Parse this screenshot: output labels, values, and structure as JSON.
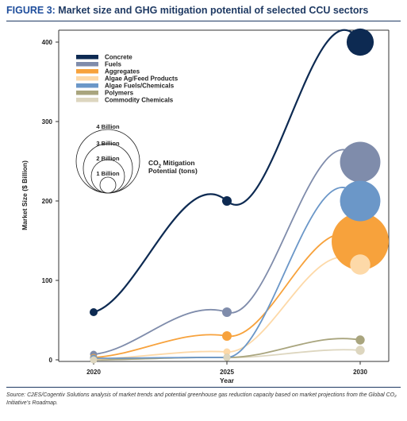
{
  "figure": {
    "label": "FIGURE 3:",
    "title": "Market size and GHG mitigation potential of selected CCU sectors",
    "source": "Source: C2ES/Cogentiv Solutions analysis of market trends and potential greenhouse gas reduction capacity based on market projections from the Global CO₂ Initiative’s Roadmap."
  },
  "chart_data": {
    "type": "scatter",
    "xlabel": "Year",
    "ylabel": "Market Size ($ Billion)",
    "x": [
      "2020",
      "2025",
      "2030"
    ],
    "ylim": [
      0,
      420
    ],
    "yticks": [
      "0",
      "100",
      "200",
      "300",
      "400"
    ],
    "grid": false,
    "legend_position": "top-left",
    "series": [
      {
        "name": "Concrete",
        "color": "#0d2a52",
        "values": [
          60,
          200,
          400
        ],
        "mitigation_billion_tons": [
          null,
          null,
          0.9
        ]
      },
      {
        "name": "Fuels",
        "color": "#7f8cab",
        "values": [
          7,
          60,
          249
        ],
        "mitigation_billion_tons": [
          null,
          null,
          2.0
        ]
      },
      {
        "name": "Aggregates",
        "color": "#f7a23c",
        "values": [
          3,
          30,
          149
        ],
        "mitigation_billion_tons": [
          null,
          null,
          4.0
        ]
      },
      {
        "name": "Algae Ag/Feed Products",
        "color": "#fdd9a8",
        "values": [
          1,
          10,
          120
        ],
        "mitigation_billion_tons": [
          null,
          null,
          0.5
        ]
      },
      {
        "name": "Algae Fuels/Chemicals",
        "color": "#6b97c8",
        "values": [
          2,
          3,
          200
        ],
        "mitigation_billion_tons": [
          null,
          null,
          2.0
        ]
      },
      {
        "name": "Polymers",
        "color": "#a9a57e",
        "values": [
          0,
          3,
          25
        ],
        "mitigation_billion_tons": [
          null,
          null,
          0.1
        ]
      },
      {
        "name": "Commodity Chemicals",
        "color": "#ddd6bf",
        "values": [
          0,
          3,
          12
        ],
        "mitigation_billion_tons": [
          null,
          null,
          0.1
        ]
      }
    ],
    "bubble_legend": {
      "labels": [
        "4 Billion",
        "3 Billion",
        "2 Billion",
        "1 Billion"
      ],
      "title_line1": "CO",
      "title_sub": "2",
      "title_line1_rest": " Mitigation",
      "title_line2": "Potential (tons)"
    }
  }
}
